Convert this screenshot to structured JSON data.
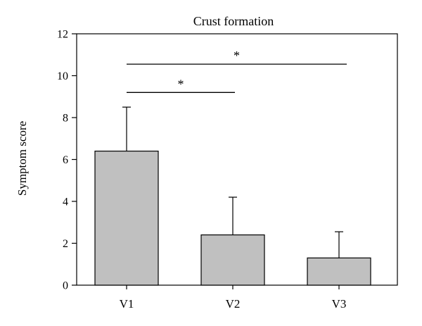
{
  "chart_data": {
    "type": "bar",
    "title": "Crust formation",
    "xlabel": "",
    "ylabel": "Symptom score",
    "categories": [
      "V1",
      "V2",
      "V3"
    ],
    "values": [
      6.4,
      2.4,
      1.3
    ],
    "error_upper": [
      8.5,
      4.2,
      2.55
    ],
    "ylim": [
      0,
      12
    ],
    "yticks": [
      0,
      2,
      4,
      6,
      8,
      10,
      12
    ],
    "grid": false,
    "bar_color": "#c0c0c0",
    "significance": [
      {
        "from": "V1",
        "to": "V2",
        "label": "*",
        "y": 9.2
      },
      {
        "from": "V1",
        "to": "V3",
        "label": "*",
        "y": 10.55
      }
    ]
  }
}
